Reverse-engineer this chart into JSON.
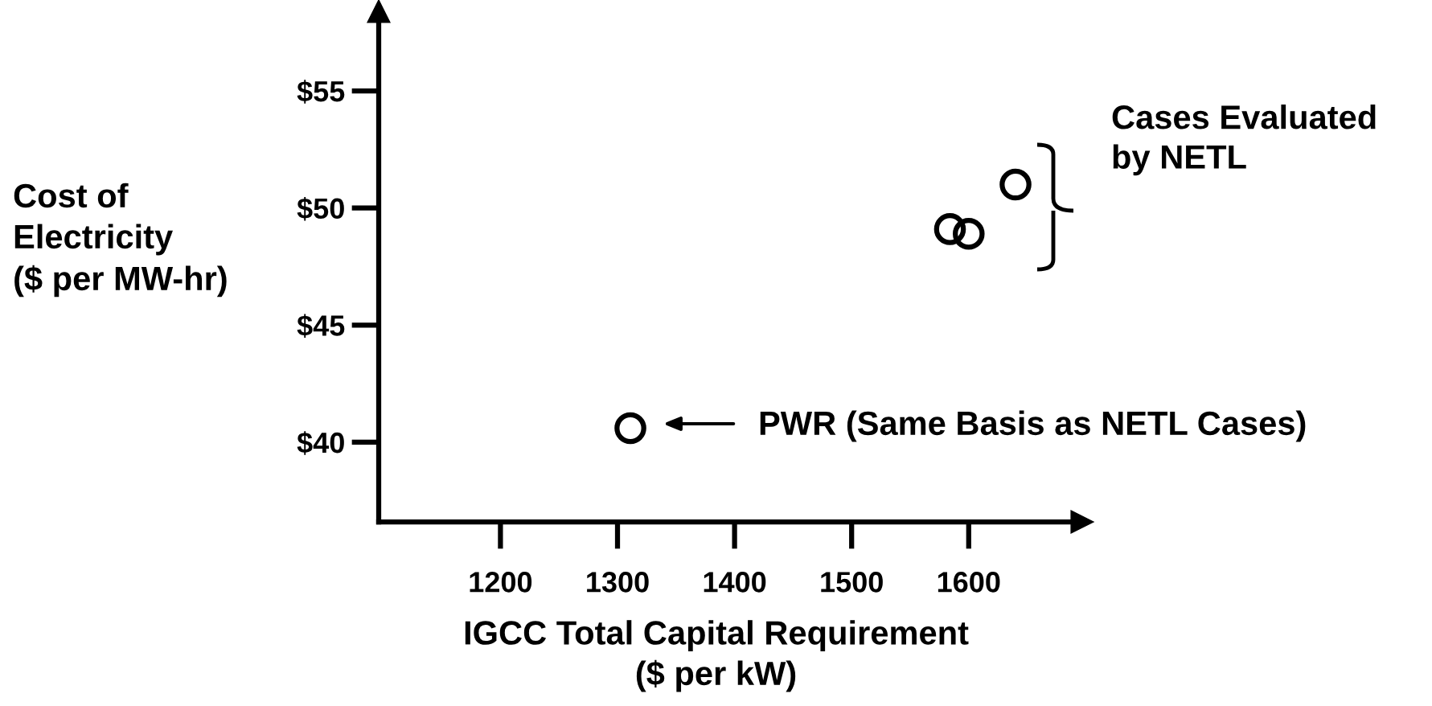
{
  "chart_data": {
    "type": "scatter",
    "xlabel": "IGCC Total Capital Requirement\n($ per kW)",
    "ylabel": "Cost of\nElectricity\n($ per MW-hr)",
    "series": [
      {
        "color": "#000000",
        "x": [
          1640,
          1584,
          1600,
          1311
        ],
        "values": [
          51.0,
          49.1,
          48.9,
          40.6
        ]
      }
    ],
    "xlim": [
      1096,
      1697
    ],
    "ylim": [
      36.6,
      58.4
    ],
    "xticks": [
      1200,
      1300,
      1400,
      1500,
      1600
    ],
    "yticks": [
      {
        "value": 40,
        "label": "$40"
      },
      {
        "value": 45,
        "label": "$45"
      },
      {
        "value": 50,
        "label": "$50"
      },
      {
        "value": 55,
        "label": "$55"
      }
    ],
    "annotations": [
      "PWR (Same Basis as NETL Cases)",
      "Cases Evaluated\nby NETL"
    ],
    "marker": "circle",
    "grid": false,
    "legend": false
  }
}
